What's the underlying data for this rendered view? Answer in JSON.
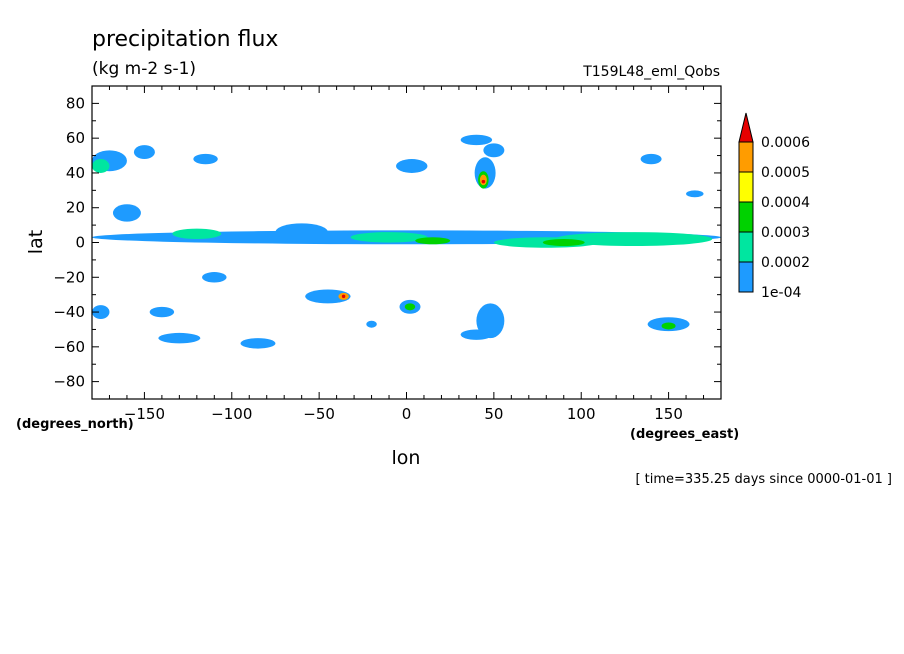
{
  "chart_data": {
    "type": "contour",
    "title": "precipitation flux",
    "units": "(kg m-2 s-1)",
    "run_label": "T159L48_eml_Qobs",
    "xlabel": "lon",
    "ylabel": "lat",
    "x_units_label": "(degrees_east)",
    "y_units_label": "(degrees_north)",
    "time_label": "[ time=335.25 days since 0000-01-01 ]",
    "xlim": [
      -180,
      180
    ],
    "ylim": [
      -90,
      90
    ],
    "x_ticks": [
      -150,
      -100,
      -50,
      0,
      50,
      100,
      150
    ],
    "x_tick_labels": [
      "-150",
      "-100",
      "-50",
      "0",
      "50",
      "100",
      "150"
    ],
    "y_ticks": [
      -80,
      -60,
      -40,
      -20,
      0,
      20,
      40,
      60,
      80
    ],
    "y_tick_labels": [
      "-80",
      "-60",
      "-40",
      "-20",
      "0",
      "20",
      "40",
      "60",
      "80"
    ],
    "colorbar": {
      "levels": [
        "1e-04",
        "0.0002",
        "0.0003",
        "0.0004",
        "0.0005",
        "0.0006"
      ],
      "colors": [
        "#1e9bff",
        "#00e6a0",
        "#00d200",
        "#ffff00",
        "#ff9c00",
        "#e60000"
      ]
    },
    "precip_regions": [
      {
        "lon": 0,
        "lat": 3,
        "rlon": 180,
        "rlat": 4,
        "level": 0
      },
      {
        "lon": 130,
        "lat": 2,
        "rlon": 45,
        "rlat": 4,
        "level": 1
      },
      {
        "lon": 80,
        "lat": 0,
        "rlon": 30,
        "rlat": 3,
        "level": 1
      },
      {
        "lon": -10,
        "lat": 3,
        "rlon": 22,
        "rlat": 3,
        "level": 1
      },
      {
        "lon": 15,
        "lat": 1,
        "rlon": 10,
        "rlat": 2,
        "level": 2
      },
      {
        "lon": 90,
        "lat": 0,
        "rlon": 12,
        "rlat": 2,
        "level": 2
      },
      {
        "lon": -120,
        "lat": 5,
        "rlon": 14,
        "rlat": 3,
        "level": 1
      },
      {
        "lon": -60,
        "lat": 6,
        "rlon": 15,
        "rlat": 5,
        "level": 0
      },
      {
        "lon": -170,
        "lat": 47,
        "rlon": 10,
        "rlat": 6,
        "level": 0
      },
      {
        "lon": -175,
        "lat": 44,
        "rlon": 5,
        "rlat": 4,
        "level": 1
      },
      {
        "lon": -150,
        "lat": 52,
        "rlon": 6,
        "rlat": 4,
        "level": 0
      },
      {
        "lon": -115,
        "lat": 48,
        "rlon": 7,
        "rlat": 3,
        "level": 0
      },
      {
        "lon": 3,
        "lat": 44,
        "rlon": 9,
        "rlat": 4,
        "level": 0
      },
      {
        "lon": 40,
        "lat": 59,
        "rlon": 9,
        "rlat": 3,
        "level": 0
      },
      {
        "lon": 50,
        "lat": 53,
        "rlon": 6,
        "rlat": 4,
        "level": 0
      },
      {
        "lon": 45,
        "lat": 40,
        "rlon": 6,
        "rlat": 9,
        "level": 0
      },
      {
        "lon": 44,
        "lat": 36,
        "rlon": 3,
        "rlat": 5,
        "level": 2
      },
      {
        "lon": 44,
        "lat": 36,
        "rlon": 2,
        "rlat": 3,
        "level": 4
      },
      {
        "lon": 44,
        "lat": 35,
        "rlon": 1,
        "rlat": 1,
        "level": 5
      },
      {
        "lon": 140,
        "lat": 48,
        "rlon": 6,
        "rlat": 3,
        "level": 0
      },
      {
        "lon": 165,
        "lat": 28,
        "rlon": 5,
        "rlat": 2,
        "level": 0
      },
      {
        "lon": -160,
        "lat": 17,
        "rlon": 8,
        "rlat": 5,
        "level": 0
      },
      {
        "lon": -110,
        "lat": -20,
        "rlon": 7,
        "rlat": 3,
        "level": 0
      },
      {
        "lon": -45,
        "lat": -31,
        "rlon": 13,
        "rlat": 4,
        "level": 0
      },
      {
        "lon": -36,
        "lat": -31,
        "rlon": 3,
        "rlat": 2,
        "level": 4
      },
      {
        "lon": -36,
        "lat": -31,
        "rlon": 1,
        "rlat": 1,
        "level": 5
      },
      {
        "lon": 2,
        "lat": -37,
        "rlon": 6,
        "rlat": 4,
        "level": 0
      },
      {
        "lon": 2,
        "lat": -37,
        "rlon": 3,
        "rlat": 2,
        "level": 2
      },
      {
        "lon": 48,
        "lat": -45,
        "rlon": 8,
        "rlat": 10,
        "level": 0
      },
      {
        "lon": 40,
        "lat": -53,
        "rlon": 9,
        "rlat": 3,
        "level": 0
      },
      {
        "lon": 150,
        "lat": -47,
        "rlon": 12,
        "rlat": 4,
        "level": 0
      },
      {
        "lon": 150,
        "lat": -48,
        "rlon": 4,
        "rlat": 2,
        "level": 2
      },
      {
        "lon": -175,
        "lat": -40,
        "rlon": 5,
        "rlat": 4,
        "level": 0
      },
      {
        "lon": -140,
        "lat": -40,
        "rlon": 7,
        "rlat": 3,
        "level": 0
      },
      {
        "lon": -130,
        "lat": -55,
        "rlon": 12,
        "rlat": 3,
        "level": 0
      },
      {
        "lon": -85,
        "lat": -58,
        "rlon": 10,
        "rlat": 3,
        "level": 0
      },
      {
        "lon": -20,
        "lat": -47,
        "rlon": 3,
        "rlat": 2,
        "level": 0
      }
    ]
  }
}
